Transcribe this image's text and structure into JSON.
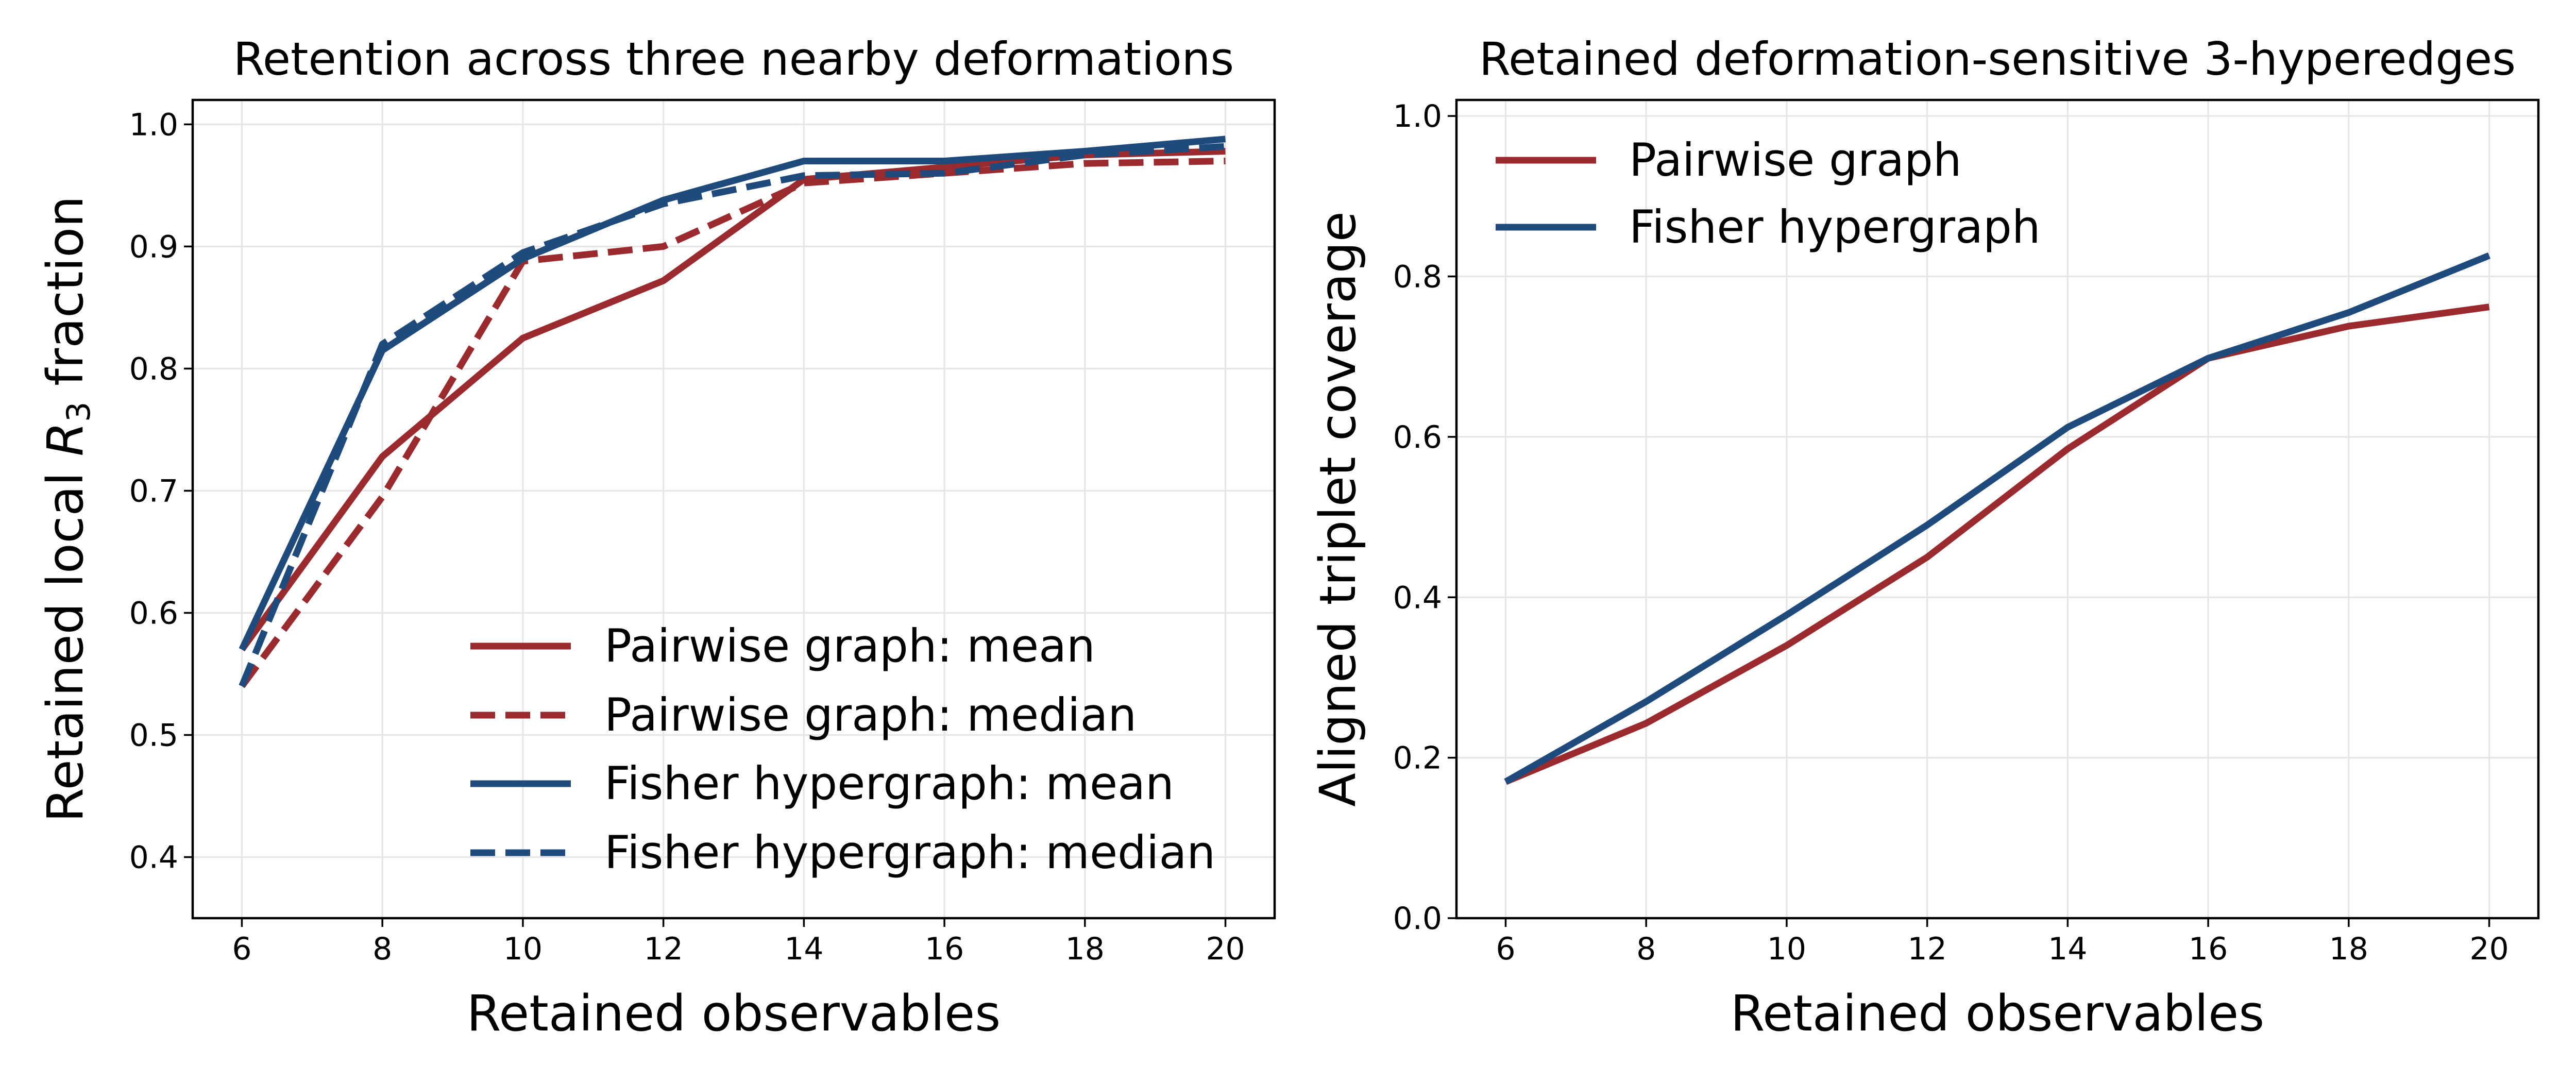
{
  "chart_data": [
    {
      "type": "line",
      "title": "Retention across three nearby deformations",
      "xlabel": "Retained observables",
      "ylabel_main": "Retained local ",
      "ylabel_symbol": "R",
      "ylabel_sub": "3",
      "ylabel_tail": " fraction",
      "x": [
        6,
        8,
        10,
        12,
        14,
        16,
        18,
        20
      ],
      "xlim": [
        5.3,
        20.7
      ],
      "ylim": [
        0.35,
        1.02
      ],
      "xticks": [
        6,
        8,
        10,
        12,
        14,
        16,
        18,
        20
      ],
      "yticks": [
        0.4,
        0.5,
        0.6,
        0.7,
        0.8,
        0.9,
        1.0
      ],
      "ytick_labels": [
        "0.4",
        "0.5",
        "0.6",
        "0.7",
        "0.8",
        "0.9",
        "1.0"
      ],
      "grid": true,
      "legend_position": "lower-right",
      "series": [
        {
          "name": "Pairwise graph: mean",
          "color": "#9b2a2e",
          "dash": "solid",
          "values": [
            0.57,
            0.728,
            0.825,
            0.872,
            0.955,
            0.965,
            0.975,
            0.978
          ]
        },
        {
          "name": "Pairwise graph: median",
          "color": "#9b2a2e",
          "dash": "dashed",
          "values": [
            0.54,
            0.695,
            0.888,
            0.9,
            0.952,
            0.96,
            0.968,
            0.97
          ]
        },
        {
          "name": "Fisher hypergraph: mean",
          "color": "#1f4a7c",
          "dash": "solid",
          "values": [
            0.57,
            0.815,
            0.89,
            0.938,
            0.97,
            0.97,
            0.978,
            0.988
          ]
        },
        {
          "name": "Fisher hypergraph: median",
          "color": "#1f4a7c",
          "dash": "dashed",
          "values": [
            0.54,
            0.82,
            0.895,
            0.935,
            0.958,
            0.96,
            0.975,
            0.982
          ]
        }
      ]
    },
    {
      "type": "line",
      "title": "Retained deformation-sensitive 3-hyperedges",
      "xlabel": "Retained observables",
      "ylabel": "Aligned triplet coverage",
      "x": [
        6,
        8,
        10,
        12,
        14,
        16,
        18,
        20
      ],
      "xlim": [
        5.3,
        20.7
      ],
      "ylim": [
        0.0,
        1.02
      ],
      "xticks": [
        6,
        8,
        10,
        12,
        14,
        16,
        18,
        20
      ],
      "yticks": [
        0.0,
        0.2,
        0.4,
        0.6,
        0.8,
        1.0
      ],
      "ytick_labels": [
        "0.0",
        "0.2",
        "0.4",
        "0.6",
        "0.8",
        "1.0"
      ],
      "grid": true,
      "legend_position": "upper-left",
      "series": [
        {
          "name": "Pairwise graph",
          "color": "#9b2a2e",
          "dash": "solid",
          "values": [
            0.17,
            0.243,
            0.34,
            0.45,
            0.585,
            0.698,
            0.738,
            0.762
          ]
        },
        {
          "name": "Fisher hypergraph",
          "color": "#1f4a7c",
          "dash": "solid",
          "values": [
            0.17,
            0.27,
            0.378,
            0.49,
            0.612,
            0.698,
            0.755,
            0.826
          ]
        }
      ]
    }
  ]
}
